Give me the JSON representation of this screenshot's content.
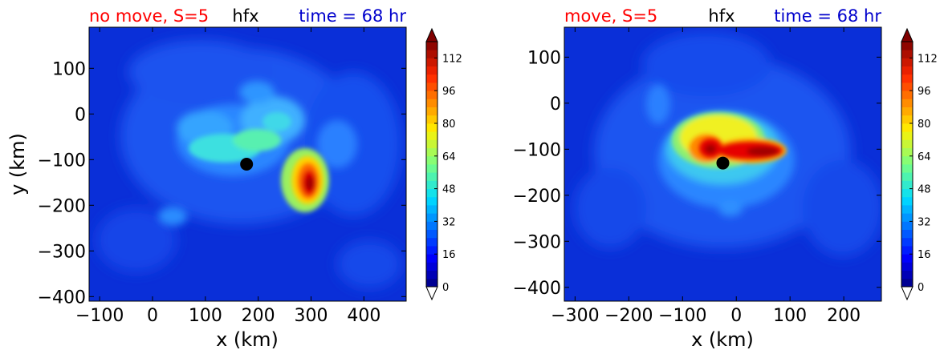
{
  "colors": {
    "title_left": "#ff0000",
    "title_center": "#000000",
    "title_right": "#0000cc",
    "background_field": "#0a2fd8",
    "center_marker": "#000000"
  },
  "chart_data": [
    {
      "type": "heatmap",
      "subtype": "filled-contour",
      "title_left": "no move, S=5",
      "title_center": "hfx",
      "title_right": "time = 68 hr",
      "xlabel": "x (km)",
      "ylabel": "y (km)",
      "xlim": [
        -120,
        480
      ],
      "ylim": [
        -410,
        190
      ],
      "xticks": [
        -100,
        0,
        100,
        200,
        300,
        400
      ],
      "xtick_labels": [
        "−100",
        "0",
        "100",
        "200",
        "300",
        "400"
      ],
      "yticks": [
        100,
        0,
        -100,
        -200,
        -300,
        -400
      ],
      "ytick_labels": [
        "100",
        "0",
        "−100",
        "−200",
        "−300",
        "−400"
      ],
      "storm_center": [
        178,
        -110
      ],
      "features": [
        {
          "label": "hfx maximum",
          "x": 300,
          "y": -150,
          "value": 120
        },
        {
          "label": "inner ring",
          "x": 210,
          "y": -60,
          "value": 45
        }
      ],
      "colorbar": {
        "min": 0,
        "max": 120,
        "step": 4,
        "ticks": [
          0,
          16,
          32,
          48,
          64,
          80,
          96,
          112
        ],
        "extend": "both"
      }
    },
    {
      "type": "heatmap",
      "subtype": "filled-contour",
      "title_left": "move, S=5",
      "title_center": "hfx",
      "title_right": "time = 68 hr",
      "xlabel": "x (km)",
      "ylabel": "",
      "xlim": [
        -320,
        270
      ],
      "ylim": [
        -430,
        165
      ],
      "xticks": [
        -300,
        -200,
        -100,
        0,
        100,
        200
      ],
      "xtick_labels": [
        "−300",
        "−200",
        "−100",
        "0",
        "100",
        "200"
      ],
      "yticks": [
        100,
        0,
        -100,
        -200,
        -300,
        -400
      ],
      "ytick_labels": [
        "100",
        "0",
        "−100",
        "−200",
        "−300",
        "−400"
      ],
      "storm_center": [
        -25,
        -130
      ],
      "features": [
        {
          "label": "hfx maximum band",
          "x": 20,
          "y": -105,
          "value": 120
        },
        {
          "label": "inner ring",
          "x": -20,
          "y": -70,
          "value": 60
        }
      ],
      "colorbar": {
        "min": 0,
        "max": 120,
        "step": 4,
        "ticks": [
          0,
          16,
          32,
          48,
          64,
          80,
          96,
          112
        ],
        "extend": "both"
      }
    }
  ]
}
